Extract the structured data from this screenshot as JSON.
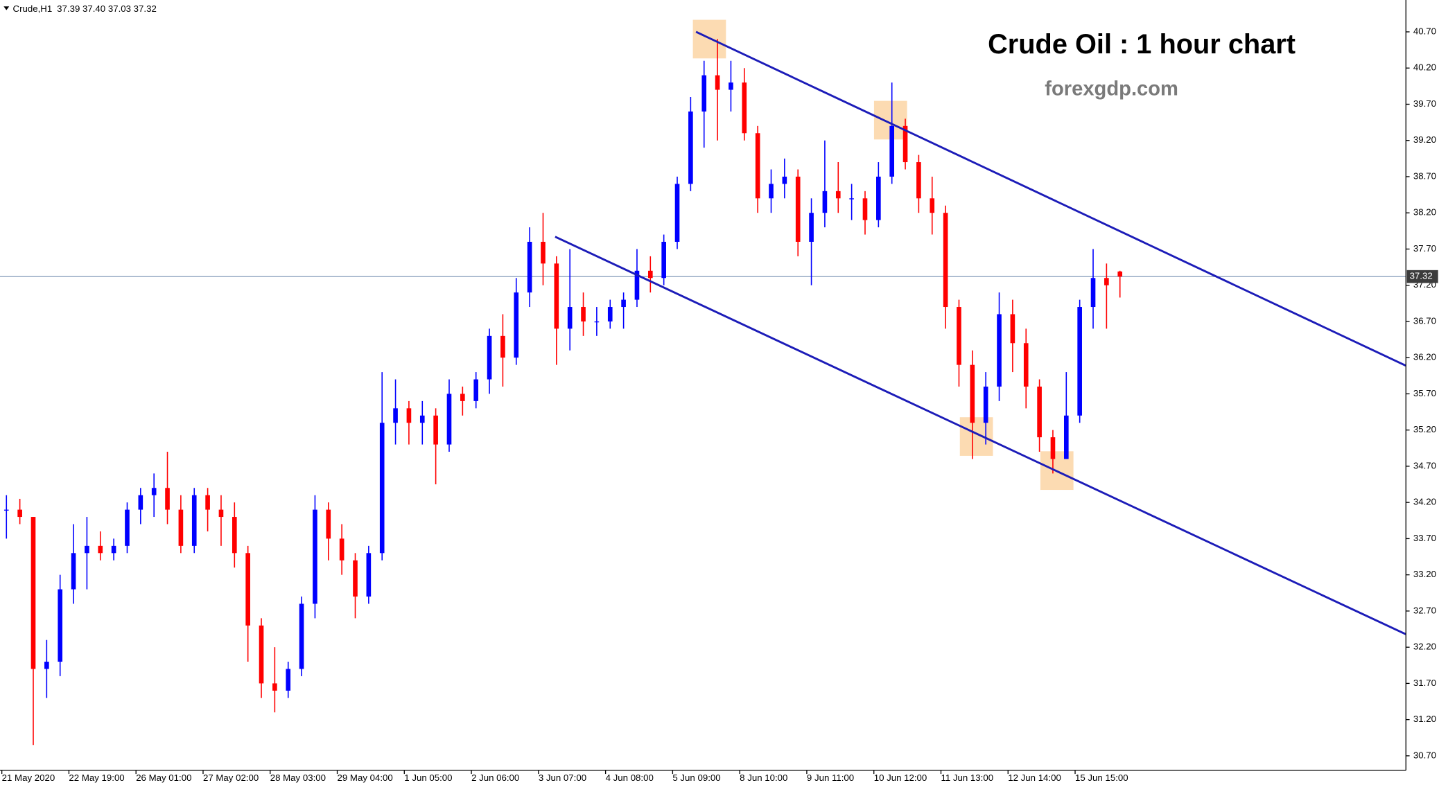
{
  "chart_data": {
    "type": "candlestick",
    "header": {
      "symbol": "Crude,H1",
      "ohlc": "37.39 37.40 37.03 37.32"
    },
    "title": "Crude Oil : 1 hour chart",
    "subtitle": "forexgdp.com",
    "categories": [
      "21 May 2020",
      null,
      null,
      null,
      null,
      "22 May 19:00",
      null,
      null,
      null,
      null,
      "26 May 01:00",
      null,
      null,
      null,
      null,
      "27 May 02:00",
      null,
      null,
      null,
      null,
      "28 May 03:00",
      null,
      null,
      null,
      null,
      "29 May 04:00",
      null,
      null,
      null,
      null,
      "1 Jun 05:00",
      null,
      null,
      null,
      null,
      "2 Jun 06:00",
      null,
      null,
      null,
      null,
      "3 Jun 07:00",
      null,
      null,
      null,
      null,
      "4 Jun 08:00",
      null,
      null,
      null,
      null,
      "5 Jun 09:00",
      null,
      null,
      null,
      null,
      "8 Jun 10:00",
      null,
      null,
      null,
      null,
      "9 Jun 11:00",
      null,
      null,
      null,
      null,
      "10 Jun 12:00",
      null,
      null,
      null,
      null,
      "11 Jun 13:00",
      null,
      null,
      null,
      null,
      "12 Jun 14:00",
      null,
      null,
      null,
      null,
      "15 Jun 15:00",
      null,
      null,
      null
    ],
    "open": [
      34.1,
      34.1,
      34.0,
      31.9,
      32.0,
      33.0,
      33.5,
      33.6,
      33.5,
      33.6,
      34.1,
      34.3,
      34.4,
      34.1,
      33.6,
      34.3,
      34.1,
      34.0,
      33.5,
      32.5,
      31.7,
      31.6,
      31.9,
      32.8,
      34.1,
      33.7,
      33.4,
      32.9,
      33.5,
      35.3,
      35.5,
      35.3,
      35.4,
      35.0,
      35.7,
      35.6,
      35.9,
      36.5,
      36.2,
      37.1,
      37.8,
      37.5,
      36.6,
      36.9,
      36.7,
      36.7,
      36.9,
      37.0,
      37.4,
      37.3,
      37.8,
      38.6,
      39.6,
      40.1,
      39.9,
      40.0,
      39.3,
      38.4,
      38.6,
      38.7,
      37.8,
      38.2,
      38.5,
      38.4,
      38.4,
      38.1,
      38.7,
      39.4,
      38.9,
      38.4,
      38.2,
      36.9,
      36.1,
      35.3,
      35.8,
      36.8,
      36.4,
      35.8,
      35.1,
      34.8,
      35.4,
      36.9,
      37.3,
      37.39
    ],
    "high": [
      34.3,
      34.25,
      34.0,
      32.3,
      33.2,
      33.9,
      34.0,
      33.8,
      33.7,
      34.2,
      34.4,
      34.6,
      34.9,
      34.3,
      34.4,
      34.4,
      34.3,
      34.2,
      33.6,
      32.6,
      32.2,
      32.0,
      32.9,
      34.3,
      34.2,
      33.9,
      33.5,
      33.6,
      36.0,
      35.9,
      35.6,
      35.6,
      35.5,
      35.9,
      35.8,
      36.0,
      36.6,
      36.8,
      37.3,
      38.0,
      38.2,
      37.6,
      37.7,
      37.1,
      36.9,
      37.0,
      37.1,
      37.7,
      37.6,
      37.9,
      38.7,
      39.8,
      40.3,
      40.6,
      40.3,
      40.2,
      39.4,
      38.8,
      38.95,
      38.8,
      38.4,
      39.2,
      38.9,
      38.6,
      38.5,
      38.9,
      40.0,
      39.5,
      39.0,
      38.7,
      38.3,
      37.0,
      36.3,
      36.0,
      37.1,
      37.0,
      36.6,
      35.9,
      35.2,
      36.0,
      37.0,
      37.7,
      37.5,
      37.4
    ],
    "low": [
      33.7,
      33.9,
      30.85,
      31.5,
      31.8,
      32.8,
      33.0,
      33.4,
      33.4,
      33.5,
      33.9,
      34.0,
      33.9,
      33.5,
      33.5,
      33.8,
      33.6,
      33.3,
      32.0,
      31.5,
      31.3,
      31.5,
      31.8,
      32.6,
      33.4,
      33.2,
      32.6,
      32.8,
      33.4,
      35.0,
      35.0,
      35.0,
      34.45,
      34.9,
      35.4,
      35.5,
      35.7,
      35.8,
      36.1,
      36.9,
      37.2,
      36.1,
      36.3,
      36.5,
      36.5,
      36.6,
      36.6,
      36.9,
      37.1,
      37.2,
      37.7,
      38.5,
      39.1,
      39.2,
      39.6,
      39.2,
      38.2,
      38.2,
      38.4,
      37.6,
      37.2,
      38.0,
      38.2,
      38.1,
      37.9,
      38.0,
      38.6,
      38.8,
      38.2,
      37.9,
      36.6,
      35.8,
      34.8,
      35.0,
      35.6,
      36.0,
      35.5,
      34.9,
      34.6,
      34.8,
      35.3,
      36.6,
      36.6,
      37.03
    ],
    "close": [
      34.1,
      34.0,
      31.9,
      32.0,
      33.0,
      33.5,
      33.6,
      33.5,
      33.6,
      34.1,
      34.3,
      34.4,
      34.1,
      33.6,
      34.3,
      34.1,
      34.0,
      33.5,
      32.5,
      31.7,
      31.6,
      31.9,
      32.8,
      34.1,
      33.7,
      33.4,
      32.9,
      33.5,
      35.3,
      35.5,
      35.3,
      35.4,
      35.0,
      35.7,
      35.6,
      35.9,
      36.5,
      36.2,
      37.1,
      37.8,
      37.5,
      36.6,
      36.9,
      36.7,
      36.7,
      36.9,
      37.0,
      37.4,
      37.3,
      37.8,
      38.6,
      39.6,
      40.1,
      39.9,
      40.0,
      39.3,
      38.4,
      38.6,
      38.7,
      37.8,
      38.2,
      38.5,
      38.4,
      38.4,
      38.1,
      38.7,
      39.4,
      38.9,
      38.4,
      38.2,
      36.9,
      36.1,
      35.3,
      35.8,
      36.8,
      36.4,
      35.8,
      35.1,
      34.8,
      35.4,
      36.9,
      37.3,
      37.2,
      37.32
    ],
    "up_color": "#0000ff",
    "down_color": "#ff0000",
    "ylim": [
      30.5,
      41.14
    ],
    "yticks": [
      {
        "value": 30.7,
        "label": "30.70"
      },
      {
        "value": 31.2,
        "label": "31.20"
      },
      {
        "value": 31.7,
        "label": "31.70"
      },
      {
        "value": 32.2,
        "label": "32.20"
      },
      {
        "value": 32.7,
        "label": "32.70"
      },
      {
        "value": 33.2,
        "label": "33.20"
      },
      {
        "value": 33.7,
        "label": "33.70"
      },
      {
        "value": 34.2,
        "label": "34.20"
      },
      {
        "value": 34.7,
        "label": "34.70"
      },
      {
        "value": 35.2,
        "label": "35.20"
      },
      {
        "value": 35.7,
        "label": "35.70"
      },
      {
        "value": 36.2,
        "label": "36.20"
      },
      {
        "value": 36.7,
        "label": "36.70"
      },
      {
        "value": 37.2,
        "label": "37.20"
      },
      {
        "value": 37.7,
        "label": "37.70"
      },
      {
        "value": 38.2,
        "label": "38.20"
      },
      {
        "value": 38.7,
        "label": "38.70"
      },
      {
        "value": 39.2,
        "label": "39.20"
      },
      {
        "value": 39.7,
        "label": "39.70"
      },
      {
        "value": 40.2,
        "label": "40.20"
      },
      {
        "value": 40.7,
        "label": "40.70"
      }
    ],
    "last_price": {
      "value": 37.32,
      "label": "37.32"
    },
    "trendlines": [
      {
        "color": "#1c1cb8",
        "from": [
          51.4,
          40.7
        ],
        "to": [
          104.3,
          36.09
        ]
      },
      {
        "color": "#1c1cb8",
        "from": [
          40.9,
          37.87
        ],
        "to": [
          104.3,
          32.38
        ]
      }
    ],
    "highlight_color": "#fbd5a4",
    "highlights": [
      {
        "index": 52.4,
        "price": 40.6
      },
      {
        "index": 65.9,
        "price": 39.48
      },
      {
        "index": 72.3,
        "price": 35.11
      },
      {
        "index": 78.3,
        "price": 34.64
      }
    ]
  }
}
